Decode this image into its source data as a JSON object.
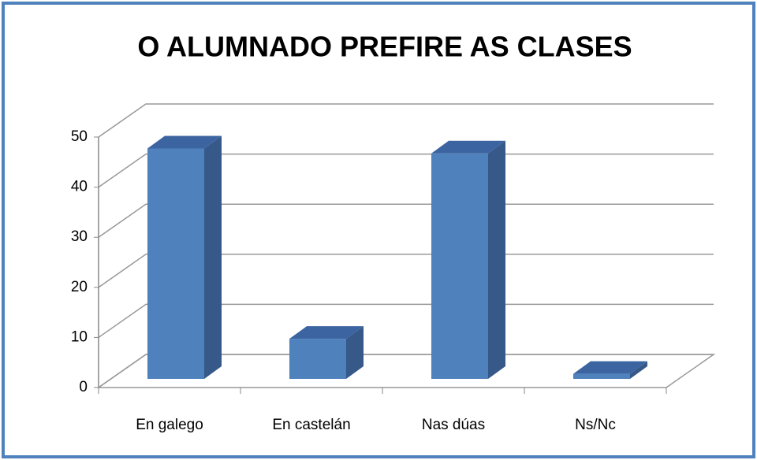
{
  "chart_data": {
    "type": "bar3d",
    "title": "O ALUMNADO PREFIRE AS CLASES",
    "categories": [
      "En galego",
      "En castelán",
      "Nas dúas",
      "Ns/Nc"
    ],
    "values": [
      46,
      8,
      45,
      1
    ],
    "color": "#4f81bd",
    "ylim": [
      0,
      50
    ],
    "yticks": [
      0,
      10,
      20,
      30,
      40,
      50
    ],
    "grid": true
  }
}
